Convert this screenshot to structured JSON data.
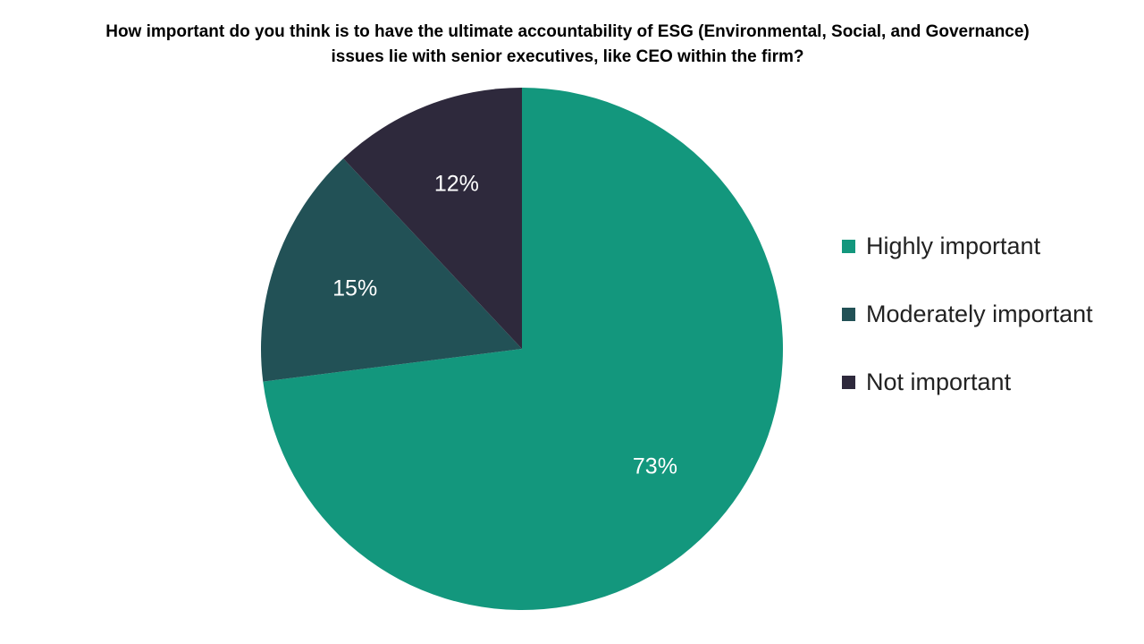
{
  "chart_data": {
    "type": "pie",
    "title": "How important do you think is to have the ultimate accountability of ESG (Environmental, Social, and Governance) issues lie with senior executives, like CEO within the firm?",
    "slices": [
      {
        "label": "Highly important",
        "value": 73,
        "value_label": "73%",
        "color": "#13977d"
      },
      {
        "label": "Moderately important",
        "value": 15,
        "value_label": "15%",
        "color": "#225156"
      },
      {
        "label": "Not important",
        "value": 12,
        "value_label": "12%",
        "color": "#2e293c"
      }
    ],
    "start": "12 o'clock, clockwise",
    "legend_position": "right"
  }
}
